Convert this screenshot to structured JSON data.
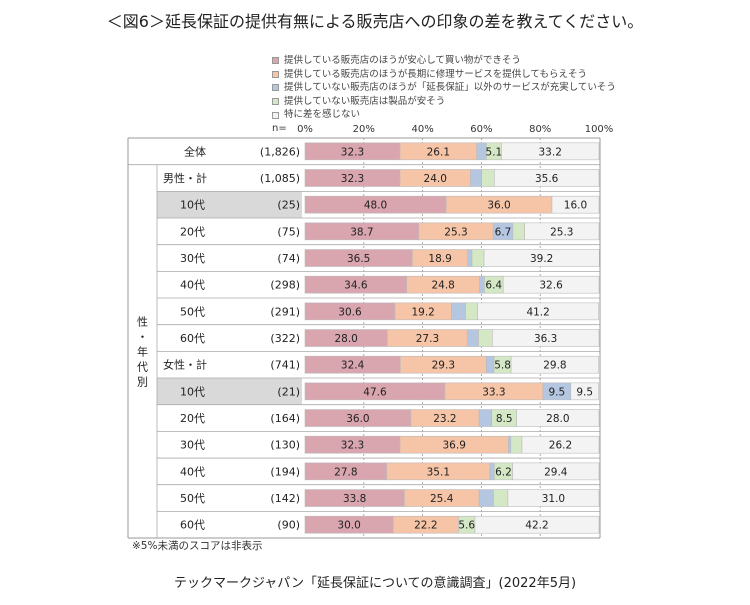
{
  "title": "＜図6＞延長保証の提供有無による販売店への印象の差を教えてください。",
  "legend": [
    {
      "label": "提供している販売店のほうが安心して買い物ができそう",
      "color": "#d9a5ae"
    },
    {
      "label": "提供している販売店のほうが長期に修理サービスを提供してもらえそう",
      "color": "#f6c4a6"
    },
    {
      "label": "提供していない販売店のほうが「延長保証」以外のサービスが充実していそう",
      "color": "#b4c6e0"
    },
    {
      "label": "提供していない販売店は製品が安そう",
      "color": "#d4e8c6"
    },
    {
      "label": "特に差を感じない",
      "color": "#f3f3f3"
    }
  ],
  "n_label": "n=",
  "note": "※5%未満のスコアは非表示",
  "source": "テックマークジャパン「延長保証についての意識調査」(2022年5月)",
  "chart_data": {
    "type": "bar",
    "orientation": "horizontal",
    "stacked": true,
    "xlim": [
      0,
      100
    ],
    "x_ticks": [
      "0%",
      "20%",
      "40%",
      "60%",
      "80%",
      "100%"
    ],
    "group_label": "性・年代別",
    "hide_below": 5,
    "rows": [
      {
        "label": "全体",
        "n": "(1,826)",
        "values": [
          32.3,
          26.1,
          3.3,
          5.1,
          33.2
        ],
        "highlight": false,
        "indent": false
      },
      {
        "label": "男性・計",
        "n": "(1,085)",
        "values": [
          32.3,
          24.0,
          3.8,
          4.3,
          35.6
        ],
        "highlight": false,
        "indent": false
      },
      {
        "label": "10代",
        "n": "(25)",
        "values": [
          48.0,
          36.0,
          0,
          0,
          16.0
        ],
        "highlight": true,
        "indent": true
      },
      {
        "label": "20代",
        "n": "(75)",
        "values": [
          38.7,
          25.3,
          6.7,
          4.0,
          25.3
        ],
        "highlight": false,
        "indent": true
      },
      {
        "label": "30代",
        "n": "(74)",
        "values": [
          36.5,
          18.9,
          1.4,
          4.1,
          39.2
        ],
        "highlight": false,
        "indent": true
      },
      {
        "label": "40代",
        "n": "(298)",
        "values": [
          34.6,
          24.8,
          1.6,
          6.4,
          32.6
        ],
        "highlight": false,
        "indent": true
      },
      {
        "label": "50代",
        "n": "(291)",
        "values": [
          30.6,
          19.2,
          4.8,
          4.1,
          41.2
        ],
        "highlight": false,
        "indent": true
      },
      {
        "label": "60代",
        "n": "(322)",
        "values": [
          28.0,
          27.3,
          3.7,
          4.7,
          36.3
        ],
        "highlight": false,
        "indent": true
      },
      {
        "label": "女性・計",
        "n": "(741)",
        "values": [
          32.4,
          29.3,
          2.6,
          5.8,
          29.8
        ],
        "highlight": false,
        "indent": false
      },
      {
        "label": "10代",
        "n": "(21)",
        "values": [
          47.6,
          33.3,
          9.5,
          0,
          9.5
        ],
        "highlight": true,
        "indent": true
      },
      {
        "label": "20代",
        "n": "(164)",
        "values": [
          36.0,
          23.2,
          4.3,
          8.5,
          28.0
        ],
        "highlight": false,
        "indent": true
      },
      {
        "label": "30代",
        "n": "(130)",
        "values": [
          32.3,
          36.9,
          0.8,
          3.8,
          26.2
        ],
        "highlight": false,
        "indent": true
      },
      {
        "label": "40代",
        "n": "(194)",
        "values": [
          27.8,
          35.1,
          1.5,
          6.2,
          29.4
        ],
        "highlight": false,
        "indent": true
      },
      {
        "label": "50代",
        "n": "(142)",
        "values": [
          33.8,
          25.4,
          4.9,
          4.9,
          31.0
        ],
        "highlight": false,
        "indent": true
      },
      {
        "label": "60代",
        "n": "(90)",
        "values": [
          30.0,
          22.2,
          0,
          5.6,
          42.2
        ],
        "highlight": false,
        "indent": true
      }
    ]
  }
}
